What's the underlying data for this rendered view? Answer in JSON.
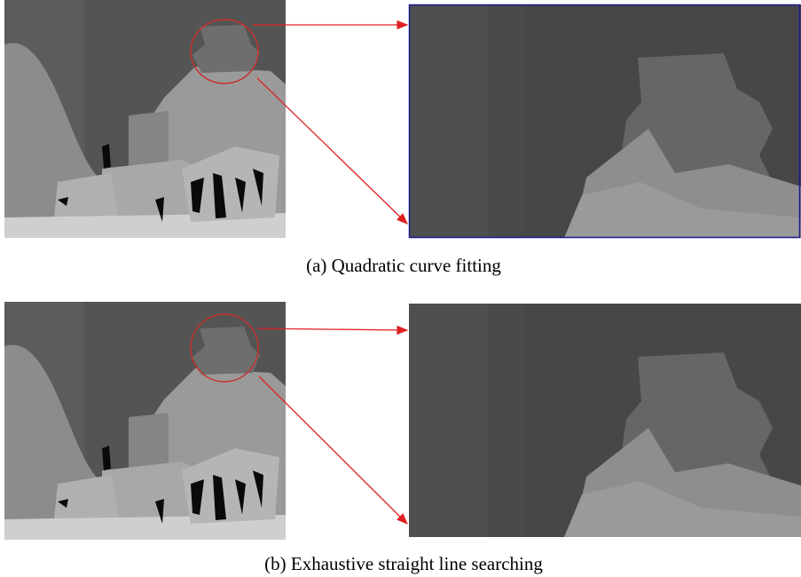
{
  "captions": [
    "(a) Quadratic curve fitting",
    "(b) Exhaustive straight line searching"
  ]
}
